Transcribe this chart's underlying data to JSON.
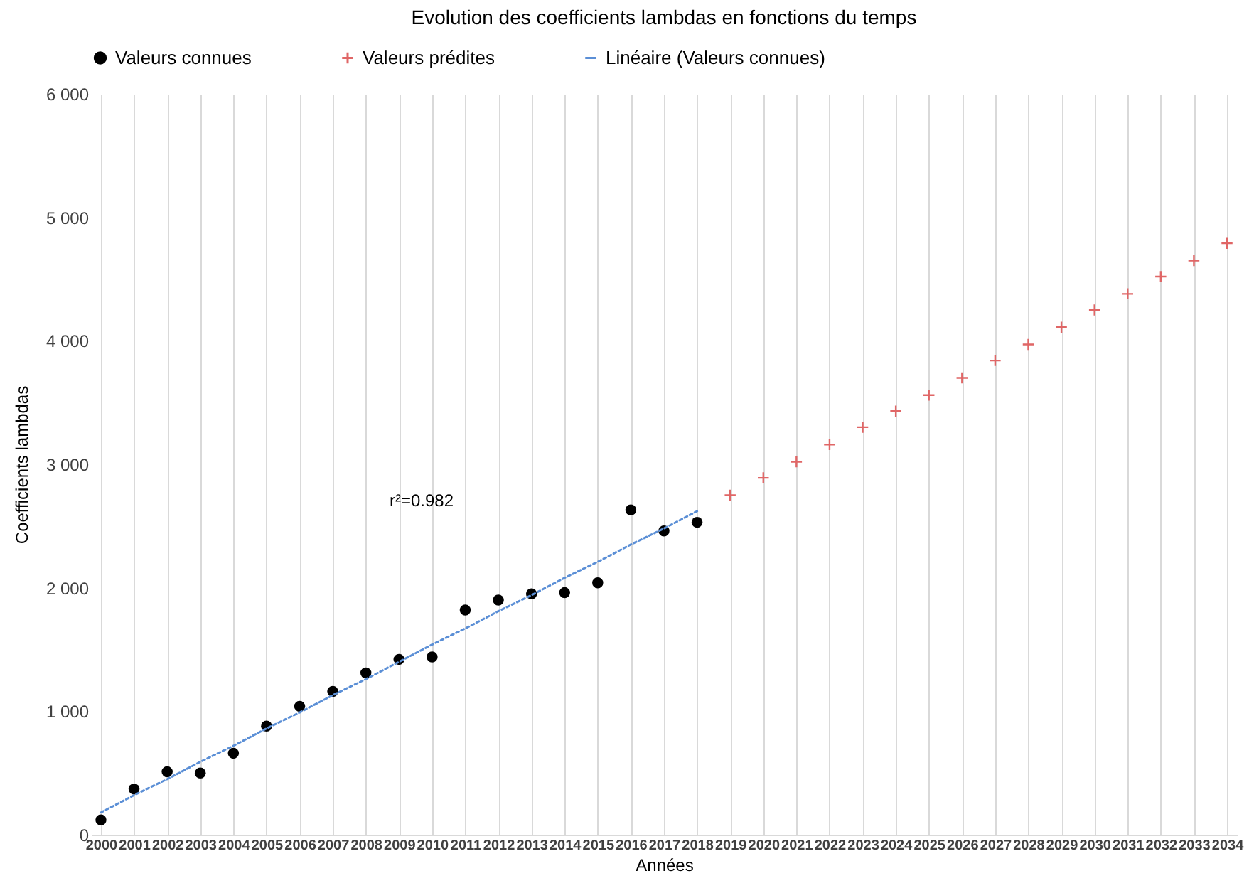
{
  "chart_data": {
    "type": "scatter",
    "title": "Evolution des coefficients lambdas en fonctions du temps",
    "xlabel": "Années",
    "ylabel": "Coefficients lambdas",
    "categories": [
      "2000",
      "2001",
      "2002",
      "2003",
      "2004",
      "2005",
      "2006",
      "2007",
      "2008",
      "2009",
      "2010",
      "2011",
      "2012",
      "2013",
      "2014",
      "2015",
      "2016",
      "2017",
      "2018",
      "2019",
      "2020",
      "2021",
      "2022",
      "2023",
      "2024",
      "2025",
      "2026",
      "2027",
      "2028",
      "2029",
      "2030",
      "2031",
      "2032",
      "2033",
      "2034"
    ],
    "series": [
      {
        "name": "Valeurs connues",
        "marker": "circle",
        "color": "#000000",
        "values": [
          120,
          370,
          510,
          500,
          660,
          880,
          1040,
          1160,
          1310,
          1420,
          1440,
          1820,
          1900,
          1950,
          1960,
          2040,
          2630,
          2460,
          2530,
          null,
          null,
          null,
          null,
          null,
          null,
          null,
          null,
          null,
          null,
          null,
          null,
          null,
          null,
          null,
          null
        ]
      },
      {
        "name": "Valeurs prédites",
        "marker": "cross",
        "color": "#e06666",
        "values": [
          null,
          null,
          null,
          null,
          null,
          null,
          null,
          null,
          null,
          null,
          null,
          null,
          null,
          null,
          null,
          null,
          null,
          null,
          null,
          2750,
          2890,
          3020,
          3160,
          3300,
          3430,
          3560,
          3700,
          3840,
          3970,
          4110,
          4250,
          4380,
          4520,
          4650,
          4790
        ]
      },
      {
        "name": "Linéaire (Valeurs connues)",
        "type": "line",
        "line_style": "dotted",
        "color": "#5b8fd6",
        "values": [
          180,
          320,
          450,
          590,
          720,
          860,
          990,
          1130,
          1260,
          1400,
          1540,
          1670,
          1810,
          1940,
          2080,
          2210,
          2350,
          2480,
          2620,
          null,
          null,
          null,
          null,
          null,
          null,
          null,
          null,
          null,
          null,
          null,
          null,
          null,
          null,
          null,
          null
        ]
      }
    ],
    "annotations": [
      "r²=0.982"
    ],
    "ylim": [
      0,
      6000
    ],
    "yticks": [
      {
        "value": 0,
        "label": "0"
      },
      {
        "value": 1000,
        "label": "1 000"
      },
      {
        "value": 2000,
        "label": "2 000"
      },
      {
        "value": 3000,
        "label": "3 000"
      },
      {
        "value": 4000,
        "label": "4 000"
      },
      {
        "value": 5000,
        "label": "5 000"
      },
      {
        "value": 6000,
        "label": "6 000"
      }
    ],
    "grid": "x",
    "legend": "top"
  }
}
